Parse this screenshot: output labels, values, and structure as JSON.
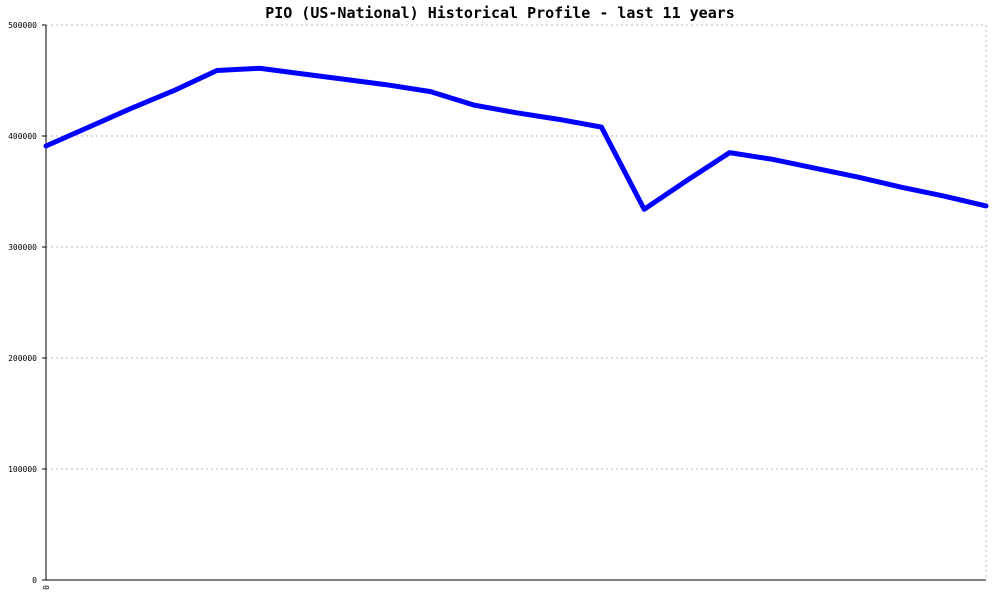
{
  "chart_data": {
    "type": "line",
    "title": "PIO (US-National) Historical Profile - last 11 years",
    "xlabel": "",
    "ylabel": "",
    "ylim": [
      0,
      500000
    ],
    "yticks": [
      0,
      100000,
      200000,
      300000,
      400000,
      500000
    ],
    "ytick_labels": [
      "0",
      "100000",
      "200000",
      "300000",
      "400000",
      "500000"
    ],
    "xtick_labels": [
      "0"
    ],
    "x_range": [
      0,
      22
    ],
    "grid": true,
    "series": [
      {
        "color": "#0000ff",
        "x": [
          0,
          1,
          2,
          3,
          4,
          5,
          6,
          7,
          8,
          9,
          10,
          11,
          12,
          13,
          14,
          15,
          16,
          17,
          18,
          19,
          20,
          21,
          22
        ],
        "values": [
          391000,
          408000,
          425000,
          441000,
          459000,
          461000,
          456000,
          451000,
          446000,
          440000,
          428000,
          421000,
          415000,
          408000,
          334000,
          360000,
          385000,
          379000,
          371000,
          363000,
          354000,
          346000,
          337000
        ]
      }
    ]
  }
}
